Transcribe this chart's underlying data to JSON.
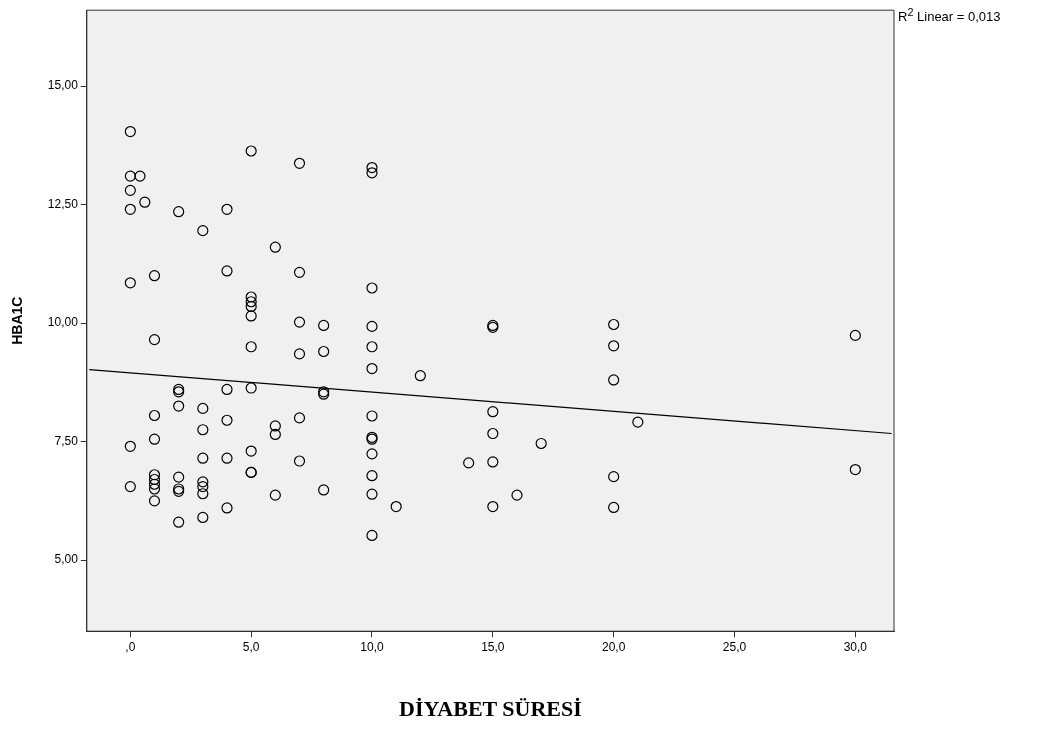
{
  "chart_data": {
    "type": "scatter",
    "xlabel": "DİYABET SÜRESİ",
    "ylabel": "HBA1C",
    "annotations": [
      "R$^{2}$ Linear = 0,013"
    ],
    "xlim": [
      -1.8,
      31.6
    ],
    "ylim": [
      3.5,
      16.6
    ],
    "xticks": [
      {
        "value": 0,
        "label": ",0"
      },
      {
        "value": 5,
        "label": "5,0"
      },
      {
        "value": 10,
        "label": "10,0"
      },
      {
        "value": 15,
        "label": "15,0"
      },
      {
        "value": 20,
        "label": "20,0"
      },
      {
        "value": 25,
        "label": "25,0"
      },
      {
        "value": 30,
        "label": "30,0"
      }
    ],
    "yticks": [
      {
        "value": 5,
        "label": "5,00"
      },
      {
        "value": 7.5,
        "label": "7,50"
      },
      {
        "value": 10,
        "label": "10,00"
      },
      {
        "value": 12.5,
        "label": "12,50"
      },
      {
        "value": 15,
        "label": "15,00"
      }
    ],
    "grid": false,
    "legend": false,
    "marker": "circle",
    "series": [
      {
        "color": "#000000",
        "x": [
          0,
          0,
          0,
          0,
          0,
          0,
          0,
          0.4,
          0.6,
          1,
          1,
          1,
          1,
          1,
          1,
          1,
          1,
          1,
          2,
          2,
          2,
          2,
          2,
          2,
          2,
          2,
          3,
          3,
          3,
          3,
          3,
          3,
          3,
          3,
          4,
          4,
          4,
          4,
          4,
          4,
          5,
          5,
          5,
          5,
          5,
          5,
          5,
          5,
          5,
          5,
          6,
          6,
          6,
          6,
          7,
          7,
          7,
          7,
          7,
          7,
          8,
          8,
          8,
          8,
          8,
          10,
          10,
          10,
          10,
          10,
          10,
          10,
          10,
          10,
          10,
          10,
          10,
          10,
          11,
          12,
          14,
          15,
          15,
          15,
          15,
          15,
          15,
          16,
          17,
          20,
          20,
          20,
          20,
          20,
          21,
          30,
          30
        ],
        "values": [
          14.04,
          13.1,
          12.8,
          12.4,
          10.85,
          7.4,
          6.55,
          13.1,
          12.55,
          11.0,
          9.65,
          8.05,
          7.55,
          6.8,
          6.7,
          6.6,
          6.5,
          6.25,
          12.35,
          8.6,
          8.55,
          8.25,
          6.75,
          6.5,
          6.45,
          5.8,
          11.95,
          8.2,
          7.75,
          7.15,
          6.65,
          6.55,
          6.4,
          5.9,
          12.4,
          11.1,
          8.6,
          7.95,
          7.15,
          6.1,
          13.63,
          10.55,
          10.45,
          10.35,
          10.15,
          9.5,
          8.63,
          7.3,
          6.85,
          6.85,
          11.6,
          7.83,
          7.65,
          6.37,
          13.37,
          11.07,
          10.02,
          9.35,
          8.0,
          7.09,
          9.95,
          9.4,
          8.55,
          8.5,
          6.48,
          13.28,
          13.17,
          10.74,
          9.93,
          9.5,
          9.04,
          8.04,
          7.59,
          7.55,
          7.24,
          6.78,
          6.39,
          5.52,
          6.13,
          8.89,
          7.05,
          9.95,
          9.91,
          8.13,
          7.67,
          7.07,
          6.13,
          6.37,
          7.46,
          9.97,
          9.52,
          8.8,
          6.76,
          6.11,
          7.91,
          9.74,
          6.91
        ]
      },
      {
        "type": "line",
        "color": "#000000",
        "marker": "none",
        "x": [
          -1.7,
          31.5
        ],
        "values": [
          9.02,
          7.67
        ]
      }
    ]
  }
}
